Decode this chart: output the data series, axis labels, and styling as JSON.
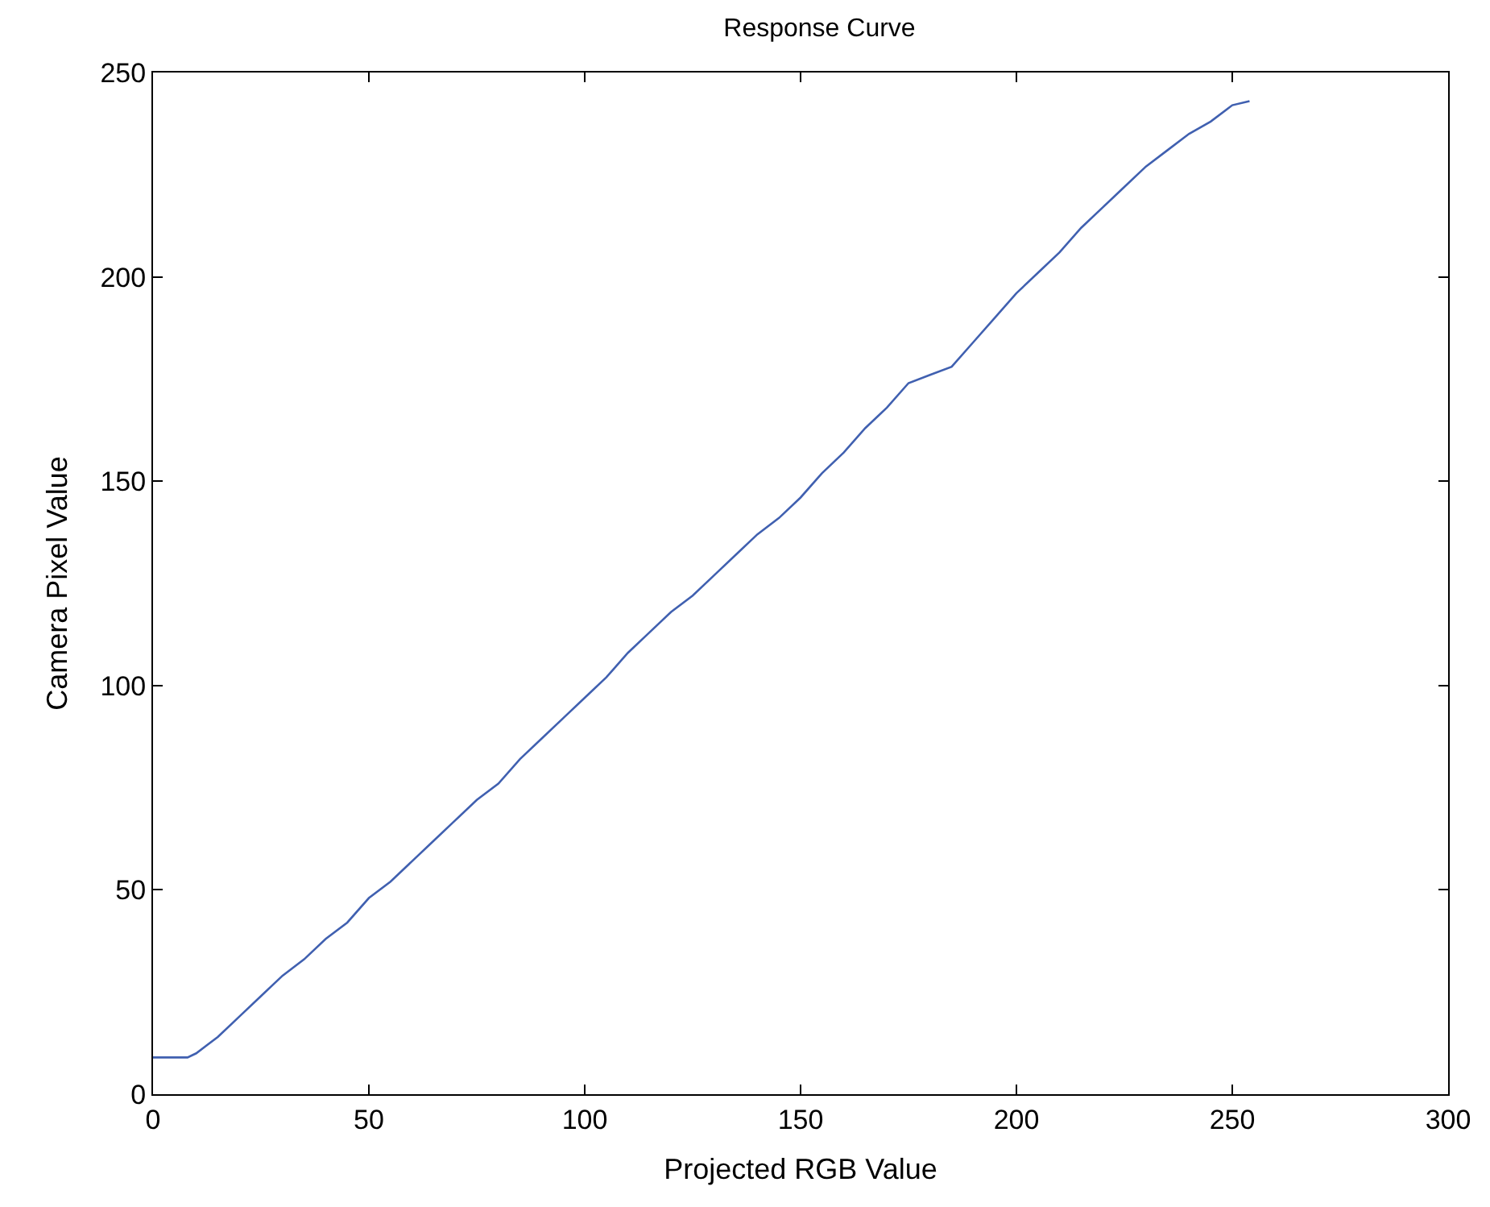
{
  "chart_data": {
    "type": "line",
    "title": "Response Curve",
    "xlabel": "Projected RGB Value",
    "ylabel": "Camera Pixel Value",
    "series": [
      {
        "color": "#4060b0",
        "x": [
          0,
          8,
          10,
          15,
          20,
          25,
          30,
          35,
          40,
          45,
          50,
          55,
          60,
          65,
          70,
          75,
          80,
          85,
          90,
          95,
          100,
          105,
          110,
          115,
          120,
          125,
          130,
          135,
          140,
          145,
          150,
          155,
          160,
          165,
          170,
          175,
          180,
          185,
          190,
          195,
          200,
          205,
          210,
          215,
          220,
          225,
          230,
          235,
          240,
          245,
          250,
          254
        ],
        "values": [
          9,
          9,
          10,
          14,
          19,
          24,
          29,
          33,
          38,
          42,
          48,
          52,
          57,
          62,
          67,
          72,
          76,
          82,
          87,
          92,
          97,
          102,
          108,
          113,
          118,
          122,
          127,
          132,
          137,
          141,
          146,
          152,
          157,
          163,
          168,
          174,
          176,
          178,
          184,
          190,
          196,
          201,
          206,
          212,
          217,
          222,
          227,
          231,
          235,
          238,
          242,
          243
        ]
      }
    ],
    "xlim": [
      0,
      300
    ],
    "xticks": [
      0,
      50,
      100,
      150,
      200,
      250,
      300
    ],
    "ylim": [
      0,
      250
    ],
    "yticks": [
      0,
      50,
      100,
      150,
      200,
      250
    ],
    "marker": "none",
    "line_style": "solid"
  }
}
